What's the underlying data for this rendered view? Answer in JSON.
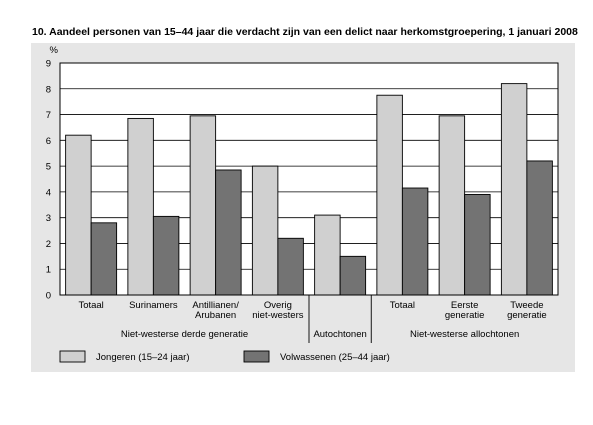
{
  "title": "10.  Aandeel personen van 15–44 jaar die verdacht zijn van een delict naar herkomstgroepering, 1 januari 2008",
  "chart_data": {
    "type": "bar",
    "title": "10.  Aandeel personen van 15–44 jaar die verdacht zijn van een delict naar herkomstgroepering, 1 januari 2008",
    "ylabel": "%",
    "xlabel": "",
    "ylim": [
      0,
      9
    ],
    "yticks": [
      "0",
      "1",
      "2",
      "3",
      "4",
      "5",
      "6",
      "7",
      "8",
      "9"
    ],
    "grid": true,
    "legend_position": "bottom",
    "categories": [
      [
        "Totaal"
      ],
      [
        "Surinamers"
      ],
      [
        "Antillianen/",
        "Arubanen"
      ],
      [
        "Overig",
        "niet-westers"
      ],
      [
        ""
      ],
      [
        "Totaal"
      ],
      [
        "Eerste",
        "generatie"
      ],
      [
        "Tweede",
        "generatie"
      ]
    ],
    "groups": [
      {
        "label": "Niet-westerse derde generatie",
        "from": 0,
        "to": 3
      },
      {
        "label": "Autochtonen",
        "from": 4,
        "to": 4
      },
      {
        "label": "Niet-westerse allochtonen",
        "from": 5,
        "to": 7
      }
    ],
    "series": [
      {
        "name": "Jongeren (15–24 jaar)",
        "color": "#d0d0d0",
        "values": [
          6.2,
          6.85,
          6.95,
          5.0,
          3.1,
          7.75,
          6.95,
          8.2
        ]
      },
      {
        "name": "Volwassenen (25–44 jaar)",
        "color": "#737373",
        "values": [
          2.8,
          3.05,
          4.85,
          2.2,
          1.5,
          4.15,
          3.9,
          5.2
        ]
      }
    ]
  }
}
